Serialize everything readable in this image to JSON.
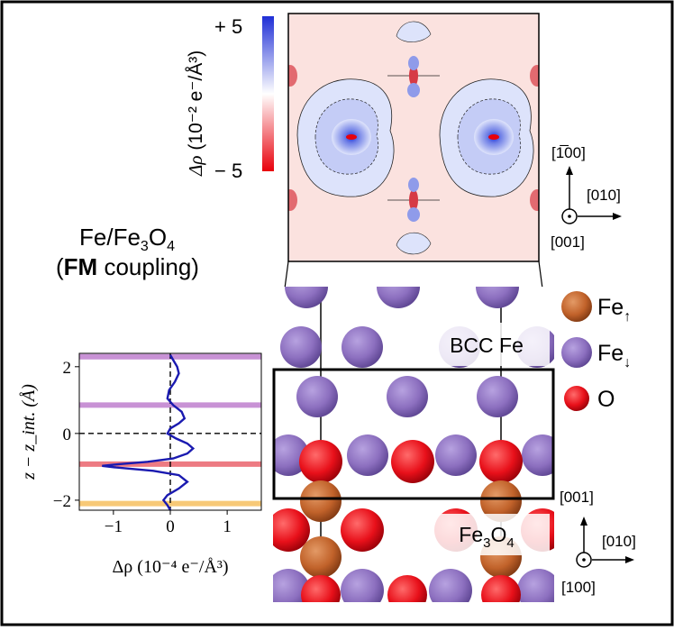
{
  "colorbar": {
    "label_delta_rho": "Δρ",
    "label_units": "(10⁻² e⁻/Å³)",
    "max_label": "+ 5",
    "min_label": "− 5",
    "color_max": "#1f2fd6",
    "color_min": "#e8000b"
  },
  "title": {
    "line1_fe": "Fe/Fe",
    "line1_sub": "3",
    "line1_o": "O",
    "line1_sub2": "4",
    "line2_open": "(",
    "line2_bold": "FM",
    "line2_rest": " coupling)"
  },
  "top_axes": {
    "up": "[1̅00]",
    "right": "[010]",
    "out": "[001]"
  },
  "bottom_axes": {
    "up": "[001]",
    "right": "[010]",
    "out": "[100]"
  },
  "structure": {
    "label_bcc": "BCC Fe",
    "label_fe3o4_main": "Fe",
    "label_fe3o4_sub1": "3",
    "label_fe3o4_o": "O",
    "label_fe3o4_sub2": "4"
  },
  "legend": {
    "items": [
      {
        "label": "Fe",
        "suffix": "↑",
        "color": "#c1622a"
      },
      {
        "label": "Fe",
        "suffix": "↓",
        "color": "#8c6fbf"
      },
      {
        "label": "O",
        "suffix": "",
        "color": "#e8101a"
      }
    ]
  },
  "chart_data": {
    "type": "line",
    "xlabel": "Δρ (10⁻⁴ e⁻/Å³)",
    "ylabel": "z − z_int. (Å)",
    "xlim": [
      -1.6,
      1.6
    ],
    "ylim": [
      -2.3,
      2.4
    ],
    "xticks": [
      "−1",
      "0",
      "1"
    ],
    "yticks": [
      "−2",
      "0",
      "2"
    ],
    "series": [
      {
        "color": "#1a1ab0",
        "x": [
          0.0,
          0.05,
          0.12,
          0.15,
          0.08,
          -0.02,
          -0.05,
          0.05,
          0.2,
          0.25,
          0.15,
          0.0,
          -0.05,
          0.1,
          0.3,
          0.4,
          0.3,
          0.05,
          -0.4,
          -0.9,
          -1.2,
          -0.95,
          -0.3,
          0.15,
          0.3,
          0.15,
          -0.05,
          -0.12,
          -0.05,
          0.0
        ],
        "y": [
          2.35,
          2.2,
          2.0,
          1.8,
          1.55,
          1.3,
          1.05,
          0.85,
          0.65,
          0.45,
          0.3,
          0.15,
          0.0,
          -0.15,
          -0.3,
          -0.45,
          -0.6,
          -0.75,
          -0.85,
          -0.92,
          -0.97,
          -1.02,
          -1.12,
          -1.25,
          -1.45,
          -1.65,
          -1.85,
          -2.0,
          -2.15,
          -2.3
        ]
      }
    ],
    "layer_bands": [
      {
        "y": 2.3,
        "color": "#b66ec8"
      },
      {
        "y": 0.85,
        "color": "#b66ec8"
      },
      {
        "y": -0.92,
        "color": "#e8505a"
      },
      {
        "y": -2.1,
        "color": "#f5b84a"
      }
    ],
    "reference_lines": [
      "x = 0",
      "y = 0"
    ]
  }
}
